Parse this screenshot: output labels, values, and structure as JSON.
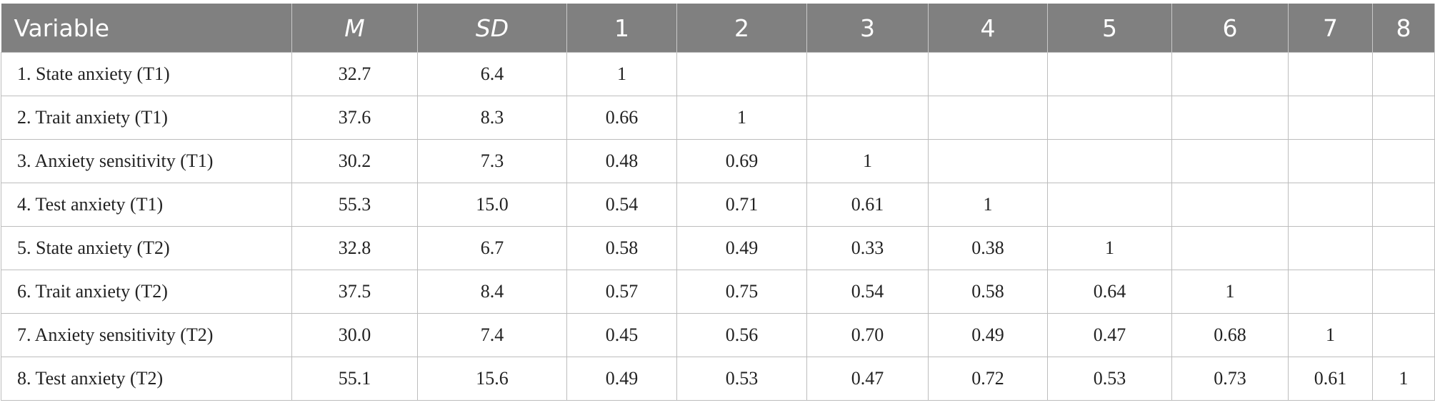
{
  "table": {
    "header": [
      "Variable",
      "M",
      "SD",
      "1",
      "2",
      "3",
      "4",
      "5",
      "6",
      "7",
      "8"
    ],
    "rows": [
      [
        "1.  State anxiety (T1)",
        "32.7",
        "6.4",
        "1"
      ],
      [
        "2.  Trait anxiety (T1)",
        "37.6",
        "8.3",
        "0.66",
        "1"
      ],
      [
        "3.  Anxiety sensitivity (T1)",
        "30.2",
        "7.3",
        "0.48",
        "0.69",
        "1"
      ],
      [
        "4.  Test anxiety (T1)",
        "55.3",
        "15.0",
        "0.54",
        "0.71",
        "0.61",
        "1"
      ],
      [
        "5.  State anxiety (T2)",
        "32.8",
        "6.7",
        "0.58",
        "0.49",
        "0.33",
        "0.38",
        "1"
      ],
      [
        "6.  Trait anxiety (T2)",
        "37.5",
        "8.4",
        "0.57",
        "0.75",
        "0.54",
        "0.58",
        "0.64",
        "1"
      ],
      [
        "7.  Anxiety sensitivity (T2)",
        "30.0",
        "7.4",
        "0.45",
        "0.56",
        "0.70",
        "0.49",
        "0.47",
        "0.68",
        "1"
      ],
      [
        "8.  Test anxiety (T2)",
        "55.1",
        "15.6",
        "0.49",
        "0.53",
        "0.47",
        "0.72",
        "0.53",
        "0.73",
        "0.61",
        "1"
      ]
    ]
  }
}
